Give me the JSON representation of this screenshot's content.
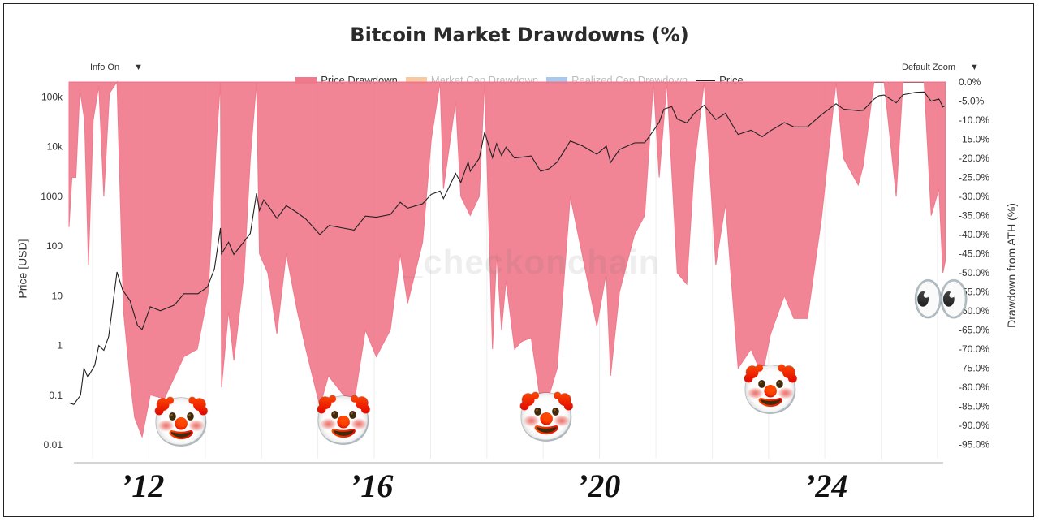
{
  "title": "Bitcoin Market Drawdowns (%)",
  "watermark": "_checkonchain",
  "controls": {
    "info_label": "Info On",
    "zoom_label": "Default Zoom",
    "caret": "▼"
  },
  "legend": [
    {
      "name": "Price Drawdown",
      "color": "#f07a8c",
      "dimmed": false
    },
    {
      "name": "Market Cap Drawdown",
      "color": "#f8c9a0",
      "dimmed": true
    },
    {
      "name": "Realized Cap Drawdown",
      "color": "#a9c8ee",
      "dimmed": true
    },
    {
      "name": "Price",
      "color": "#222222",
      "dimmed": false
    }
  ],
  "year_labels": [
    "’12",
    "’16",
    "’20",
    "’24"
  ],
  "emoji": {
    "clown_icon": "🤡",
    "eyes_icon": "👀"
  },
  "colors": {
    "drawdown_fill": "#f07a8c",
    "price_line": "#222222",
    "grid": "#eeeeee"
  },
  "chart_data": {
    "type": "area",
    "title": "Bitcoin Market Drawdowns (%)",
    "x_axis_type": "date",
    "xlim": [
      "2010-08-01",
      "2026-02-28"
    ],
    "left_axis": {
      "label": "Price [USD]",
      "scale": "log",
      "range": [
        0.01,
        200000
      ],
      "ticks": [
        "0.01",
        "0.1",
        "1",
        "10",
        "100",
        "1000",
        "10k",
        "100k"
      ]
    },
    "right_axis": {
      "label": "Drawdown from ATH (%)",
      "range": [
        -100,
        0
      ],
      "ticks": [
        "0.0%",
        "-5.0%",
        "-10.0%",
        "-15.0%",
        "-20.0%",
        "-25.0%",
        "-30.0%",
        "-35.0%",
        "-40.0%",
        "-45.0%",
        "-50.0%",
        "-55.0%",
        "-60.0%",
        "-65.0%",
        "-70.0%",
        "-75.0%",
        "-80.0%",
        "-85.0%",
        "-90.0%",
        "-95.0%"
      ]
    },
    "series": [
      {
        "name": "Price Drawdown",
        "axis": "right",
        "points": [
          [
            "2010-08-01",
            -38
          ],
          [
            "2010-08-20",
            -25
          ],
          [
            "2010-09-15",
            -25
          ],
          [
            "2010-10-10",
            -2
          ],
          [
            "2010-11-10",
            -10
          ],
          [
            "2010-12-05",
            -48
          ],
          [
            "2011-01-05",
            -10
          ],
          [
            "2011-02-10",
            -1
          ],
          [
            "2011-03-15",
            -30
          ],
          [
            "2011-04-20",
            -3
          ],
          [
            "2011-06-08",
            0
          ],
          [
            "2011-07-20",
            -60
          ],
          [
            "2011-09-01",
            -78
          ],
          [
            "2011-10-01",
            -88
          ],
          [
            "2011-11-18",
            -93
          ],
          [
            "2012-01-10",
            -82
          ],
          [
            "2012-04-10",
            -83
          ],
          [
            "2012-08-15",
            -72
          ],
          [
            "2012-11-10",
            -70
          ],
          [
            "2013-01-20",
            -55
          ],
          [
            "2013-03-15",
            -15
          ],
          [
            "2013-04-09",
            0
          ],
          [
            "2013-04-16",
            -80
          ],
          [
            "2013-06-01",
            -60
          ],
          [
            "2013-07-05",
            -73
          ],
          [
            "2013-09-10",
            -50
          ],
          [
            "2013-10-20",
            -20
          ],
          [
            "2013-11-29",
            0
          ],
          [
            "2013-12-18",
            -45
          ],
          [
            "2014-02-10",
            -50
          ],
          [
            "2014-04-10",
            -66
          ],
          [
            "2014-06-10",
            -45
          ],
          [
            "2014-08-20",
            -60
          ],
          [
            "2014-10-15",
            -70
          ],
          [
            "2015-01-14",
            -85
          ],
          [
            "2015-03-10",
            -77
          ],
          [
            "2015-06-15",
            -82
          ],
          [
            "2015-08-24",
            -84
          ],
          [
            "2015-11-05",
            -65
          ],
          [
            "2016-01-15",
            -72
          ],
          [
            "2016-04-15",
            -65
          ],
          [
            "2016-06-18",
            -45
          ],
          [
            "2016-08-05",
            -58
          ],
          [
            "2016-11-10",
            -42
          ],
          [
            "2017-01-05",
            -15
          ],
          [
            "2017-03-03",
            0
          ],
          [
            "2017-03-25",
            -28
          ],
          [
            "2017-06-12",
            -5
          ],
          [
            "2017-07-16",
            -30
          ],
          [
            "2017-09-15",
            -35
          ],
          [
            "2017-11-12",
            -30
          ],
          [
            "2017-12-17",
            0
          ],
          [
            "2018-02-06",
            -70
          ],
          [
            "2018-03-05",
            -45
          ],
          [
            "2018-04-06",
            -65
          ],
          [
            "2018-05-05",
            -52
          ],
          [
            "2018-06-29",
            -70
          ],
          [
            "2018-08-15",
            -68
          ],
          [
            "2018-10-15",
            -67
          ],
          [
            "2018-12-15",
            -84
          ],
          [
            "2019-02-10",
            -82
          ],
          [
            "2019-04-02",
            -75
          ],
          [
            "2019-06-26",
            -30
          ],
          [
            "2019-09-15",
            -46
          ],
          [
            "2019-12-15",
            -64
          ],
          [
            "2020-02-14",
            -50
          ],
          [
            "2020-03-13",
            -77
          ],
          [
            "2020-05-10",
            -55
          ],
          [
            "2020-08-15",
            -40
          ],
          [
            "2020-10-20",
            -35
          ],
          [
            "2020-12-16",
            0
          ],
          [
            "2021-01-22",
            -25
          ],
          [
            "2021-03-13",
            0
          ],
          [
            "2021-05-19",
            -50
          ],
          [
            "2021-07-20",
            -53
          ],
          [
            "2021-09-07",
            -22
          ],
          [
            "2021-11-10",
            0
          ],
          [
            "2022-01-24",
            -48
          ],
          [
            "2022-03-28",
            -32
          ],
          [
            "2022-06-18",
            -75
          ],
          [
            "2022-09-10",
            -70
          ],
          [
            "2022-11-21",
            -77
          ],
          [
            "2023-01-15",
            -66
          ],
          [
            "2023-04-14",
            -56
          ],
          [
            "2023-06-15",
            -62
          ],
          [
            "2023-09-11",
            -62
          ],
          [
            "2023-12-10",
            -36
          ],
          [
            "2024-03-14",
            0
          ],
          [
            "2024-05-01",
            -20
          ],
          [
            "2024-08-05",
            -27
          ],
          [
            "2024-09-06",
            -22
          ],
          [
            "2024-11-15",
            0
          ],
          [
            "2025-01-20",
            0
          ],
          [
            "2025-04-08",
            -30
          ],
          [
            "2025-05-22",
            0
          ],
          [
            "2025-08-14",
            0
          ],
          [
            "2025-10-06",
            0
          ],
          [
            "2025-11-21",
            -35
          ],
          [
            "2026-01-10",
            -28
          ],
          [
            "2026-02-05",
            -50
          ],
          [
            "2026-02-20",
            -47
          ]
        ]
      },
      {
        "name": "Price",
        "axis": "left",
        "points": [
          [
            "2010-08-01",
            0.07
          ],
          [
            "2010-09-01",
            0.065
          ],
          [
            "2010-10-15",
            0.1
          ],
          [
            "2010-11-06",
            0.35
          ],
          [
            "2010-12-01",
            0.23
          ],
          [
            "2011-01-15",
            0.4
          ],
          [
            "2011-02-10",
            1.0
          ],
          [
            "2011-03-15",
            0.8
          ],
          [
            "2011-04-15",
            1.5
          ],
          [
            "2011-05-10",
            6
          ],
          [
            "2011-06-08",
            30
          ],
          [
            "2011-07-15",
            13
          ],
          [
            "2011-09-01",
            8
          ],
          [
            "2011-10-20",
            2.5
          ],
          [
            "2011-11-18",
            2.1
          ],
          [
            "2012-01-10",
            6
          ],
          [
            "2012-03-15",
            5
          ],
          [
            "2012-06-15",
            6.5
          ],
          [
            "2012-08-15",
            11
          ],
          [
            "2012-11-15",
            11
          ],
          [
            "2013-01-15",
            15
          ],
          [
            "2013-03-01",
            35
          ],
          [
            "2013-04-09",
            230
          ],
          [
            "2013-04-16",
            70
          ],
          [
            "2013-06-01",
            120
          ],
          [
            "2013-07-05",
            68
          ],
          [
            "2013-09-15",
            130
          ],
          [
            "2013-10-20",
            180
          ],
          [
            "2013-11-29",
            1150
          ],
          [
            "2013-12-18",
            520
          ],
          [
            "2014-01-15",
            850
          ],
          [
            "2014-03-01",
            550
          ],
          [
            "2014-04-10",
            360
          ],
          [
            "2014-06-10",
            650
          ],
          [
            "2014-08-20",
            470
          ],
          [
            "2014-10-15",
            350
          ],
          [
            "2015-01-14",
            170
          ],
          [
            "2015-03-15",
            260
          ],
          [
            "2015-06-15",
            230
          ],
          [
            "2015-08-24",
            210
          ],
          [
            "2015-11-05",
            400
          ],
          [
            "2016-01-15",
            380
          ],
          [
            "2016-04-15",
            430
          ],
          [
            "2016-06-18",
            760
          ],
          [
            "2016-08-05",
            580
          ],
          [
            "2016-11-10",
            710
          ],
          [
            "2017-01-05",
            1100
          ],
          [
            "2017-03-03",
            1280
          ],
          [
            "2017-03-25",
            900
          ],
          [
            "2017-06-12",
            2900
          ],
          [
            "2017-07-16",
            1900
          ],
          [
            "2017-09-01",
            4900
          ],
          [
            "2017-09-15",
            3200
          ],
          [
            "2017-11-12",
            5800
          ],
          [
            "2017-12-17",
            19500
          ],
          [
            "2018-02-06",
            6000
          ],
          [
            "2018-03-05",
            11500
          ],
          [
            "2018-04-06",
            6600
          ],
          [
            "2018-05-05",
            9800
          ],
          [
            "2018-06-29",
            5900
          ],
          [
            "2018-10-15",
            6500
          ],
          [
            "2018-12-15",
            3200
          ],
          [
            "2019-02-10",
            3600
          ],
          [
            "2019-04-02",
            4900
          ],
          [
            "2019-06-26",
            13000
          ],
          [
            "2019-09-15",
            10300
          ],
          [
            "2019-12-15",
            7000
          ],
          [
            "2020-02-14",
            10300
          ],
          [
            "2020-03-13",
            4800
          ],
          [
            "2020-05-10",
            8800
          ],
          [
            "2020-08-15",
            11900
          ],
          [
            "2020-10-20",
            12000
          ],
          [
            "2020-12-16",
            21000
          ],
          [
            "2021-01-22",
            31000
          ],
          [
            "2021-02-21",
            57000
          ],
          [
            "2021-04-14",
            64000
          ],
          [
            "2021-05-19",
            36000
          ],
          [
            "2021-07-20",
            30000
          ],
          [
            "2021-09-07",
            47000
          ],
          [
            "2021-11-10",
            68000
          ],
          [
            "2022-01-24",
            35000
          ],
          [
            "2022-03-28",
            47000
          ],
          [
            "2022-06-18",
            17600
          ],
          [
            "2022-09-10",
            21500
          ],
          [
            "2022-11-21",
            15800
          ],
          [
            "2023-01-15",
            21000
          ],
          [
            "2023-04-14",
            30500
          ],
          [
            "2023-06-15",
            25000
          ],
          [
            "2023-09-11",
            25000
          ],
          [
            "2023-12-10",
            44000
          ],
          [
            "2024-03-14",
            73000
          ],
          [
            "2024-05-01",
            57000
          ],
          [
            "2024-08-05",
            53000
          ],
          [
            "2024-09-06",
            54000
          ],
          [
            "2024-11-15",
            90000
          ],
          [
            "2024-12-17",
            106000
          ],
          [
            "2025-01-20",
            109000
          ],
          [
            "2025-04-08",
            76000
          ],
          [
            "2025-05-22",
            111000
          ],
          [
            "2025-08-14",
            124000
          ],
          [
            "2025-10-06",
            126000
          ],
          [
            "2025-11-21",
            82000
          ],
          [
            "2026-01-10",
            91000
          ],
          [
            "2026-02-05",
            63000
          ],
          [
            "2026-02-20",
            67000
          ]
        ]
      }
    ]
  }
}
